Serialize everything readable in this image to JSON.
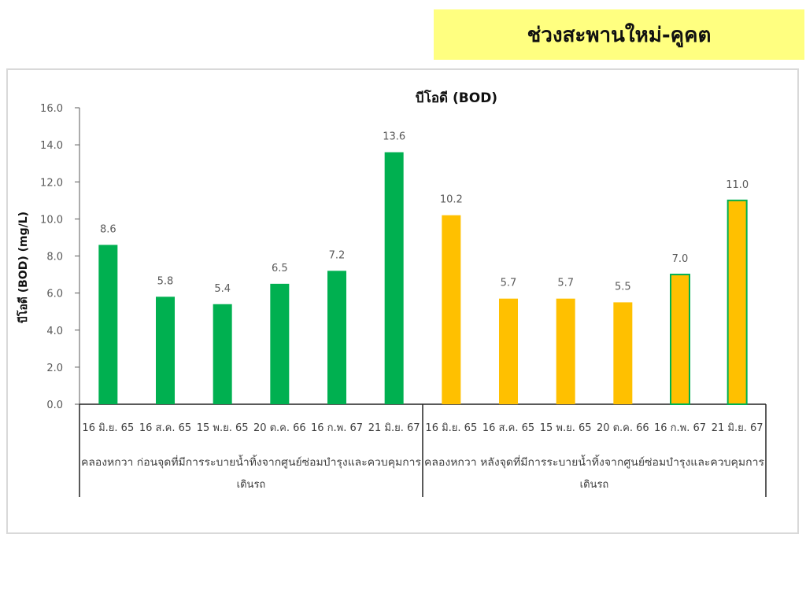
{
  "header": {
    "title": "ช่วงสะพานใหม่-คูคต"
  },
  "chart_data": {
    "type": "bar",
    "title": "บีโอดี (BOD)",
    "ylabel": "บีโอดี (BOD) (mg/L)",
    "xlabel": "",
    "ylim": [
      0,
      16
    ],
    "yticks": [
      "0.0",
      "2.0",
      "4.0",
      "6.0",
      "8.0",
      "10.0",
      "12.0",
      "14.0",
      "16.0"
    ],
    "grid": false,
    "legend": "none",
    "groups": [
      {
        "label_line1": "คลองหกวา ก่อนจุดที่มีการระบายน้ำทิ้งจากศูนย์ซ่อมบำรุงและควบคุมการ",
        "label_line2": "เดินรถ",
        "categories": [
          "16 มิ.ย. 65",
          "16 ส.ค. 65",
          "15 พ.ย. 65",
          "20 ต.ค. 66",
          "16 ก.พ. 67",
          "21 มิ.ย. 67"
        ],
        "values": [
          8.6,
          5.8,
          5.4,
          6.5,
          7.2,
          13.6
        ],
        "labels": [
          "8.6",
          "5.8",
          "5.4",
          "6.5",
          "7.2",
          "13.6"
        ],
        "color": "#00b050"
      },
      {
        "label_line1": "คลองหกวา หลังจุดที่มีการระบายน้ำทิ้งจากศูนย์ซ่อมบำรุงและควบคุมการ",
        "label_line2": "เดินรถ",
        "categories": [
          "16 มิ.ย. 65",
          "16 ส.ค. 65",
          "15 พ.ย. 65",
          "20 ต.ค. 66",
          "16 ก.พ. 67",
          "21 มิ.ย. 67"
        ],
        "values": [
          10.2,
          5.7,
          5.7,
          5.5,
          7.0,
          11.0
        ],
        "labels": [
          "10.2",
          "5.7",
          "5.7",
          "5.5",
          "7.0",
          "11.0"
        ],
        "color": "#ffc000",
        "outlined_color": "#00b050"
      }
    ]
  }
}
